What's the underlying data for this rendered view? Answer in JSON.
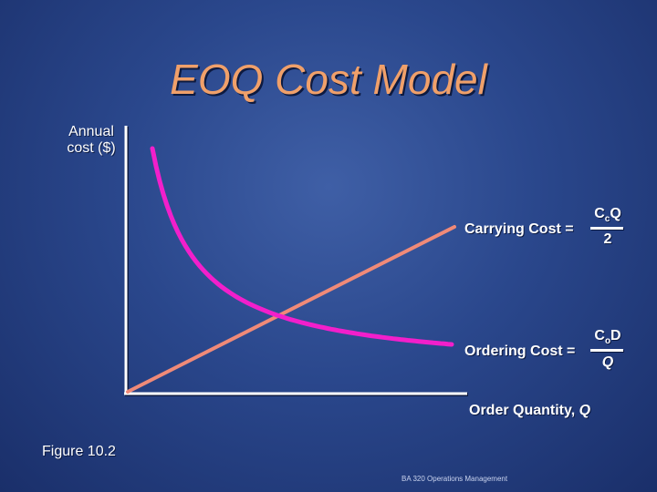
{
  "title": "EOQ Cost Model",
  "chart_data": {
    "type": "line",
    "ylabel_line1": "Annual",
    "ylabel_line2": "cost ($)",
    "xlabel_text": "Order Quantity, ",
    "xlabel_var": "Q",
    "series": [
      {
        "label": "Carrying Cost =",
        "formula_numerator": "C",
        "formula_numerator_sub": "c",
        "formula_numerator_tail": "Q",
        "formula_denominator": "2",
        "color": "#f08a78",
        "shape": "linear"
      },
      {
        "label": "Ordering Cost =",
        "formula_numerator": "C",
        "formula_numerator_sub": "o",
        "formula_numerator_tail": "D",
        "formula_denominator": "Q",
        "color": "#f21fcb",
        "shape": "hyperbola"
      }
    ],
    "grid": false
  },
  "figure_label": "Figure 10.2",
  "footer": "BA 320 Operations Management",
  "colors": {
    "title": "#f0a06a",
    "axis": "#ffffff",
    "background": "#2a478c"
  }
}
